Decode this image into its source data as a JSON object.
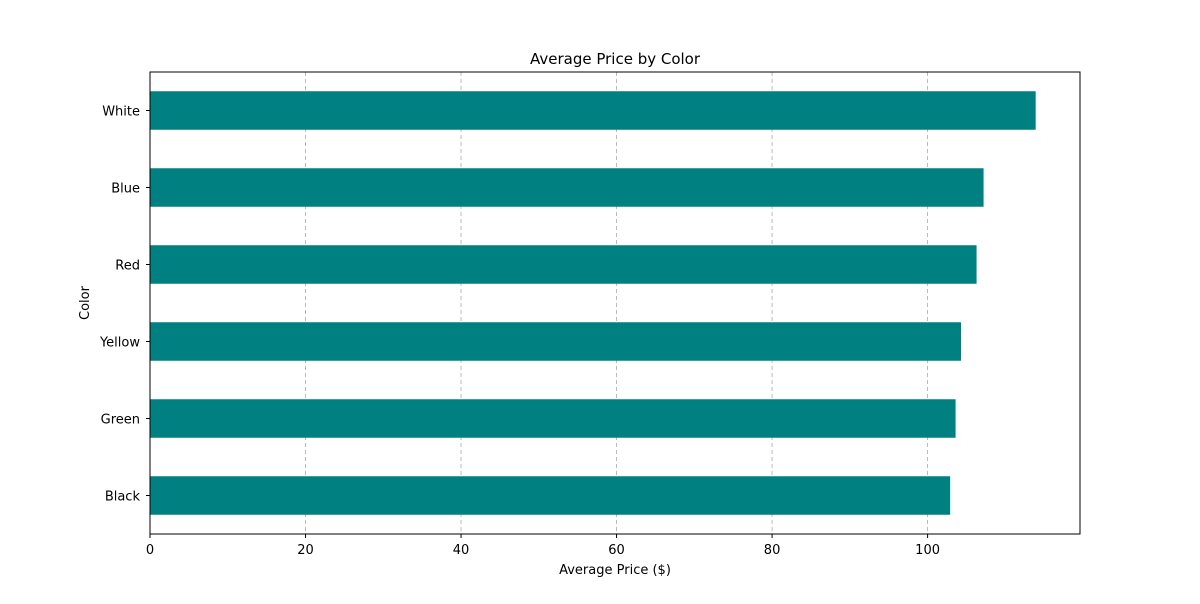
{
  "chart_data": {
    "type": "bar",
    "orientation": "horizontal",
    "title": "Average Price by Color",
    "xlabel": "Average Price ($)",
    "ylabel": "Color",
    "categories": [
      "Black",
      "Green",
      "Yellow",
      "Red",
      "Blue",
      "White"
    ],
    "values": [
      102.9,
      103.6,
      104.3,
      106.3,
      107.2,
      113.9
    ],
    "xlim": [
      0,
      119.6
    ],
    "xticks": [
      0,
      20,
      40,
      60,
      80,
      100
    ],
    "grid": "x-axis dashed",
    "bar_color": "#008080"
  }
}
